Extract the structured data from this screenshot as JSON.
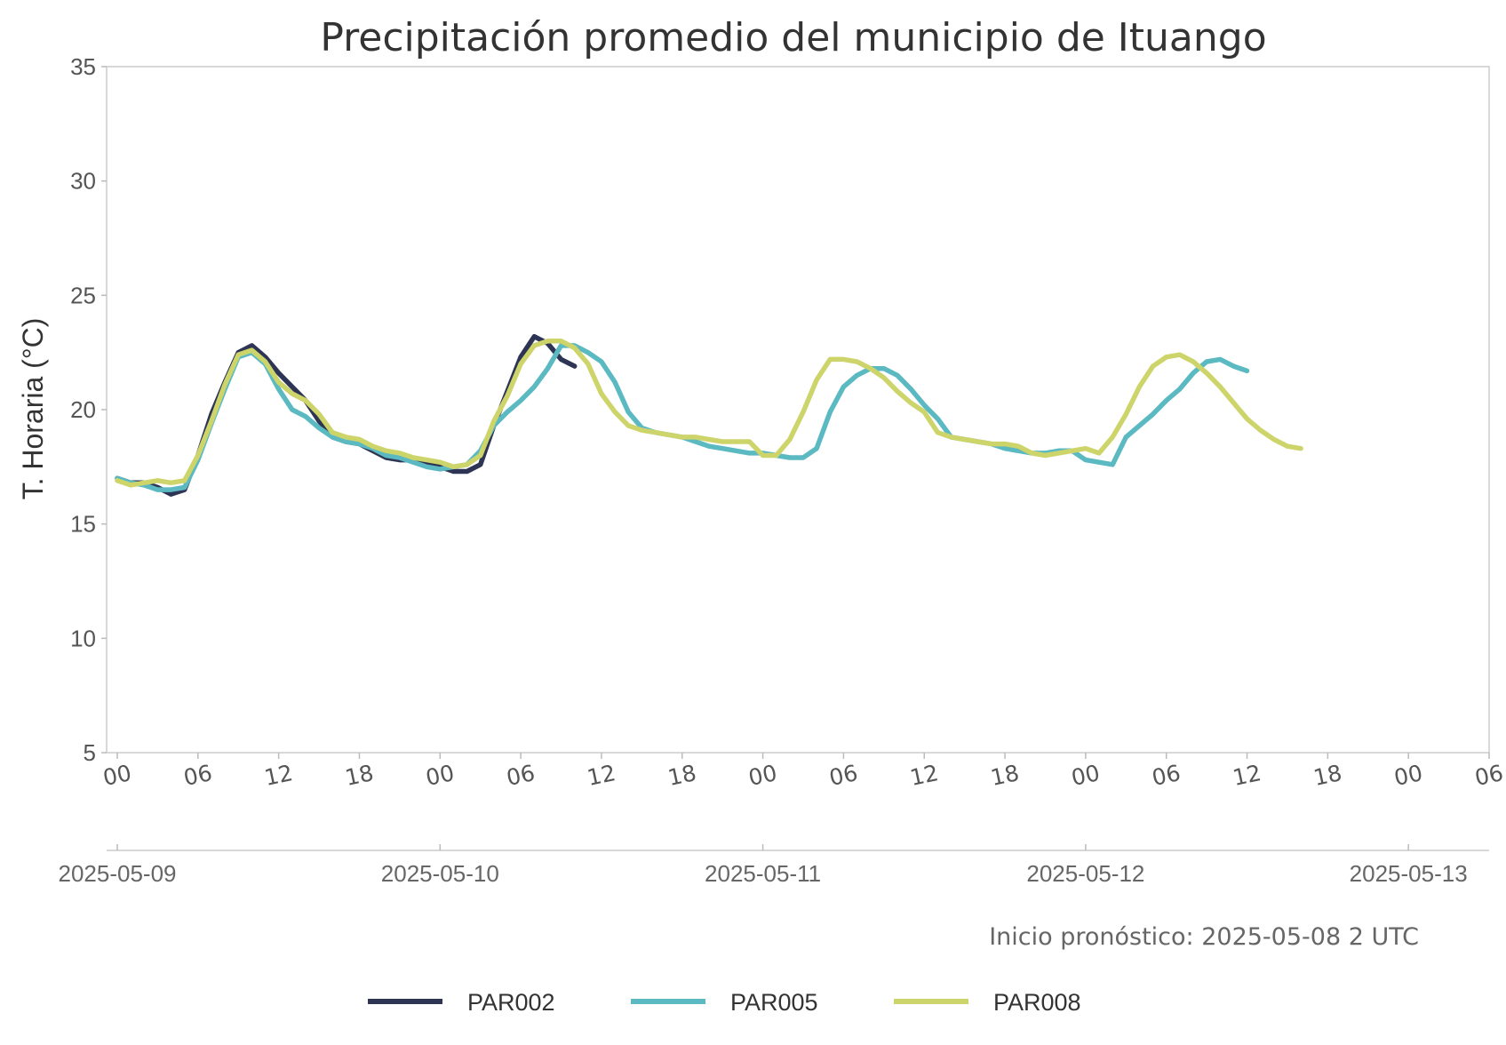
{
  "chart_data": {
    "type": "line",
    "title": "Precipitación promedio del municipio de Ituango",
    "ylabel": "T. Horaria (°C)",
    "xlabel": "",
    "ylim": [
      5,
      35
    ],
    "yticks": [
      "5",
      "10",
      "15",
      "20",
      "25",
      "30",
      "35"
    ],
    "xlim": [
      0,
      102
    ],
    "hour_ticks": [
      "00",
      "06",
      "12",
      "18",
      "00",
      "06",
      "12",
      "18",
      "00",
      "06",
      "12",
      "18",
      "00",
      "06",
      "12",
      "18",
      "00",
      "06"
    ],
    "date_ticks": [
      "2025-05-09",
      "2025-05-10",
      "2025-05-11",
      "2025-05-12",
      "2025-05-13"
    ],
    "note": "Inicio pronóstico: 2025-05-08 2 UTC",
    "grid": false,
    "legend_position": "bottom",
    "series": [
      {
        "name": "PAR002",
        "color": "#2e3554",
        "x": [
          0,
          1,
          2,
          3,
          4,
          5,
          6,
          7,
          8,
          9,
          10,
          11,
          12,
          13,
          14,
          15,
          16,
          17,
          18,
          19,
          20,
          21,
          22,
          23,
          24,
          25,
          26,
          27,
          28,
          29,
          30,
          31,
          32,
          33,
          34
        ],
        "values": [
          17.0,
          16.8,
          16.8,
          16.6,
          16.3,
          16.5,
          18.0,
          19.8,
          21.2,
          22.5,
          22.8,
          22.3,
          21.6,
          21.0,
          20.4,
          19.5,
          18.8,
          18.6,
          18.5,
          18.2,
          17.9,
          17.8,
          17.8,
          17.7,
          17.5,
          17.3,
          17.3,
          17.6,
          19.3,
          20.8,
          22.3,
          23.2,
          22.9,
          22.2,
          21.9
        ]
      },
      {
        "name": "PAR005",
        "color": "#5bb9c2",
        "x": [
          0,
          1,
          2,
          3,
          4,
          5,
          6,
          7,
          8,
          9,
          10,
          11,
          12,
          13,
          14,
          15,
          16,
          17,
          18,
          19,
          20,
          21,
          22,
          23,
          24,
          25,
          26,
          27,
          28,
          29,
          30,
          31,
          32,
          33,
          34,
          35,
          36,
          37,
          38,
          39,
          40,
          41,
          42,
          43,
          44,
          45,
          46,
          47,
          48,
          49,
          50,
          51,
          52,
          53,
          54,
          55,
          56,
          57,
          58,
          59,
          60,
          61,
          62,
          63,
          64,
          65,
          66,
          67,
          68,
          69,
          70,
          71,
          72,
          73,
          74,
          75,
          76,
          77,
          78,
          79,
          80,
          81,
          82,
          83,
          84
        ],
        "values": [
          17.0,
          16.8,
          16.7,
          16.5,
          16.5,
          16.6,
          17.8,
          19.4,
          20.9,
          22.3,
          22.5,
          22.0,
          20.9,
          20.0,
          19.7,
          19.2,
          18.8,
          18.6,
          18.5,
          18.3,
          18.0,
          17.9,
          17.7,
          17.5,
          17.4,
          17.5,
          17.6,
          18.2,
          19.3,
          19.9,
          20.4,
          21.0,
          21.8,
          22.8,
          22.8,
          22.5,
          22.1,
          21.2,
          19.9,
          19.2,
          19.0,
          18.9,
          18.8,
          18.6,
          18.4,
          18.3,
          18.2,
          18.1,
          18.1,
          18.0,
          17.9,
          17.9,
          18.3,
          19.9,
          21.0,
          21.5,
          21.8,
          21.8,
          21.5,
          20.9,
          20.2,
          19.6,
          18.8,
          18.7,
          18.6,
          18.5,
          18.3,
          18.2,
          18.1,
          18.1,
          18.2,
          18.2,
          17.8,
          17.7,
          17.6,
          18.8,
          19.3,
          19.8,
          20.4,
          20.9,
          21.6,
          22.1,
          22.2,
          21.9,
          21.7
        ]
      },
      {
        "name": "PAR008",
        "color": "#cdd46a",
        "x": [
          0,
          1,
          2,
          3,
          4,
          5,
          6,
          7,
          8,
          9,
          10,
          11,
          12,
          13,
          14,
          15,
          16,
          17,
          18,
          19,
          20,
          21,
          22,
          23,
          24,
          25,
          26,
          27,
          28,
          29,
          30,
          31,
          32,
          33,
          34,
          35,
          36,
          37,
          38,
          39,
          40,
          41,
          42,
          43,
          44,
          45,
          46,
          47,
          48,
          49,
          50,
          51,
          52,
          53,
          54,
          55,
          56,
          57,
          58,
          59,
          60,
          61,
          62,
          63,
          64,
          65,
          66,
          67,
          68,
          69,
          70,
          71,
          72,
          73,
          74,
          75,
          76,
          77,
          78,
          79,
          80,
          81,
          82,
          83,
          84,
          85,
          86,
          87,
          88
        ],
        "values": [
          16.9,
          16.7,
          16.8,
          16.9,
          16.8,
          16.9,
          18.0,
          19.5,
          21.1,
          22.4,
          22.6,
          22.1,
          21.2,
          20.7,
          20.4,
          19.8,
          19.0,
          18.8,
          18.7,
          18.4,
          18.2,
          18.1,
          17.9,
          17.8,
          17.7,
          17.5,
          17.6,
          18.0,
          19.5,
          20.6,
          22.0,
          22.8,
          23.0,
          23.0,
          22.7,
          22.0,
          20.7,
          19.9,
          19.3,
          19.1,
          19.0,
          18.9,
          18.8,
          18.8,
          18.7,
          18.6,
          18.6,
          18.6,
          18.0,
          18.0,
          18.7,
          19.9,
          21.3,
          22.2,
          22.2,
          22.1,
          21.8,
          21.4,
          20.8,
          20.3,
          19.9,
          19.0,
          18.8,
          18.7,
          18.6,
          18.5,
          18.5,
          18.4,
          18.1,
          18.0,
          18.1,
          18.2,
          18.3,
          18.1,
          18.8,
          19.8,
          21.0,
          21.9,
          22.3,
          22.4,
          22.1,
          21.6,
          21.0,
          20.3,
          19.6,
          19.1,
          18.7,
          18.4,
          18.3
        ]
      }
    ]
  }
}
